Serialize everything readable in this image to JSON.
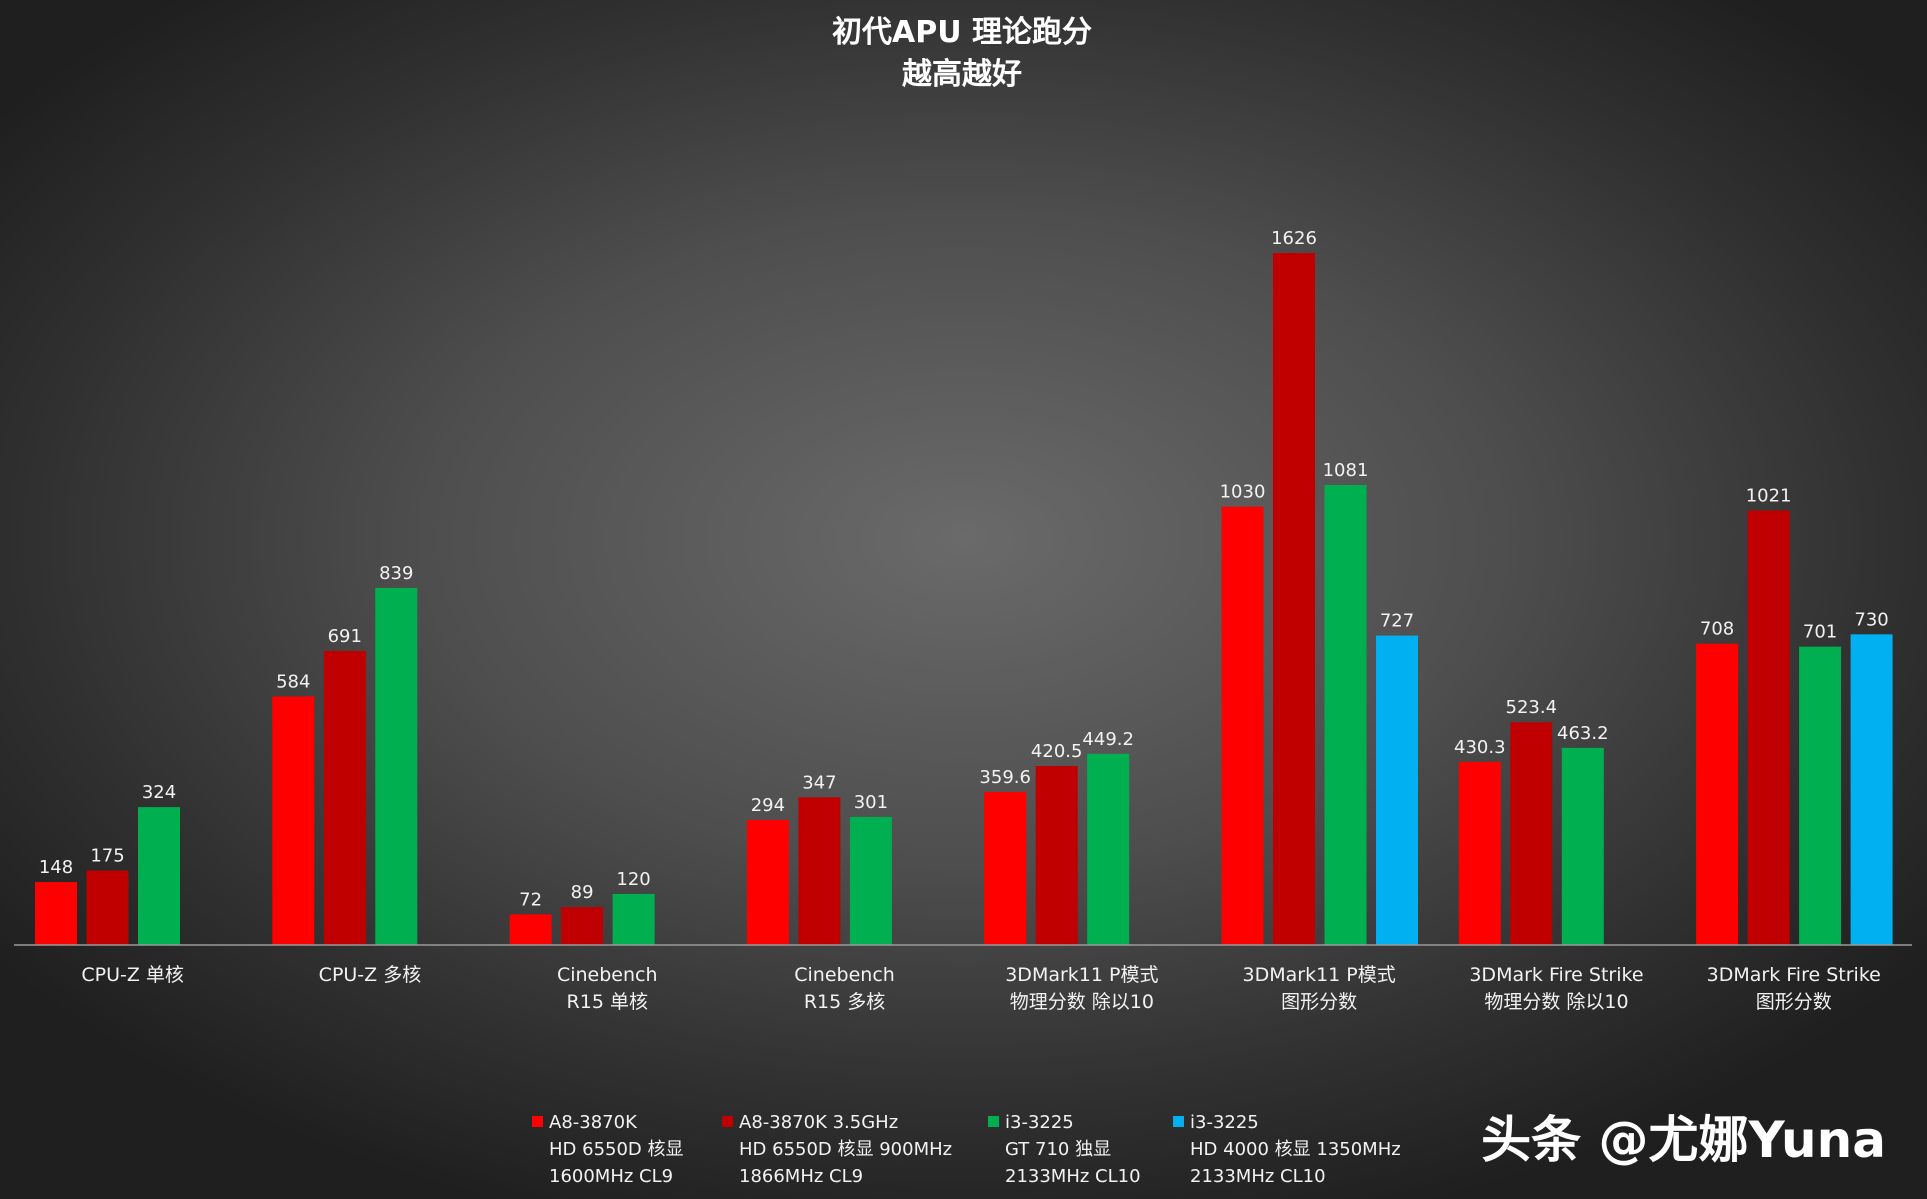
{
  "chart_data": {
    "type": "bar",
    "title": "初代APU 理论跑分",
    "subtitle": "越高越好",
    "categories": [
      [
        "CPU-Z 单核"
      ],
      [
        "CPU-Z 多核"
      ],
      [
        "Cinebench",
        "R15 单核"
      ],
      [
        "Cinebench",
        "R15 多核"
      ],
      [
        "3DMark11 P模式",
        "物理分数 除以10"
      ],
      [
        "3DMark11 P模式",
        "图形分数"
      ],
      [
        "3DMark Fire Strike",
        "物理分数 除以10"
      ],
      [
        "3DMark Fire Strike",
        "图形分数"
      ]
    ],
    "series": [
      {
        "name": [
          "A8-3870K",
          "HD 6550D 核显",
          "1600MHz CL9"
        ],
        "color": "#ff0000",
        "values": [
          148,
          584,
          72,
          294,
          359.6,
          1030,
          430.3,
          708
        ]
      },
      {
        "name": [
          "A8-3870K 3.5GHz",
          "HD 6550D 核显 900MHz",
          "1866MHz CL9"
        ],
        "color": "#c00000",
        "values": [
          175,
          691,
          89,
          347,
          420.5,
          1626,
          523.4,
          1021
        ]
      },
      {
        "name": [
          "i3-3225",
          "GT 710 独显",
          "2133MHz CL10"
        ],
        "color": "#00b050",
        "values": [
          324,
          839,
          120,
          301,
          449.2,
          1081,
          463.2,
          701
        ]
      },
      {
        "name": [
          "i3-3225",
          "HD 4000 核显 1350MHz",
          "2133MHz CL10"
        ],
        "color": "#00b0f0",
        "values": [
          null,
          null,
          null,
          null,
          null,
          727,
          null,
          730
        ]
      }
    ],
    "ylim": [
      0,
      1750
    ],
    "grid": false,
    "legend": "bottom"
  },
  "watermark": "头条 @尤娜Yuna"
}
